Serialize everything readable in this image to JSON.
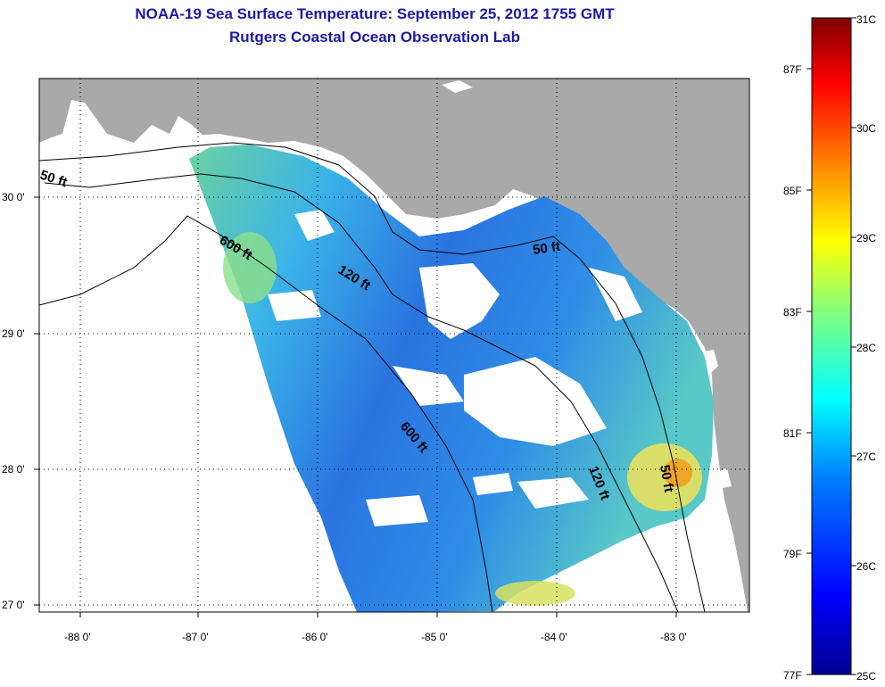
{
  "header": {
    "title": "NOAA-19 Sea Surface Temperature:  September 25, 2012 1755 GMT",
    "subtitle": "Rutgers Coastal Ocean Observation Lab"
  },
  "axes": {
    "longitude_labels": [
      "-88 0'",
      "-87 0'",
      "-86 0'",
      "-85 0'",
      "-84 0'",
      "-83 0'"
    ],
    "latitude_labels": [
      "30 0'",
      "29 0'",
      "28 0'",
      "27 0'"
    ]
  },
  "contour_labels": [
    {
      "id": "c50a",
      "text": "50 ft"
    },
    {
      "id": "c600a",
      "text": "600 ft"
    },
    {
      "id": "c120a",
      "text": "120 ft"
    },
    {
      "id": "c50b",
      "text": "50 ft"
    },
    {
      "id": "c600b",
      "text": "600 ft"
    },
    {
      "id": "c120b",
      "text": "120 ft"
    },
    {
      "id": "c50c",
      "text": "50 ft"
    }
  ],
  "colorbar": {
    "celsius": [
      "31C",
      "30C",
      "29C",
      "28C",
      "27C",
      "26C",
      "25C"
    ],
    "fahrenheit": [
      "87F",
      "85F",
      "83F",
      "81F",
      "79F",
      "77F"
    ]
  },
  "colors": {
    "land": "#a9a9a9",
    "water": "#ffffff",
    "title": "#1a1aa6",
    "sst_dominant": "#2e8ae0"
  }
}
